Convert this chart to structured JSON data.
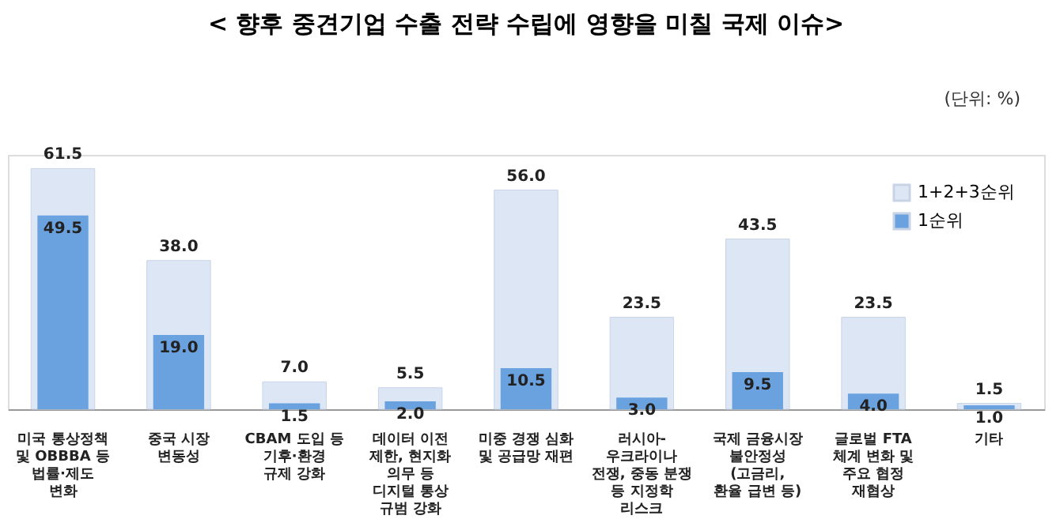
{
  "chart_data": {
    "type": "bar",
    "title": "< 향후 중견기업 수출 전략 수립에 영향을 미칠 국제 이슈>",
    "annotations": [
      "(단위: %)"
    ],
    "categories": [
      "미국 통상정책\n및 OBBBA 등\n법률·제도\n변화",
      "중국 시장\n변동성",
      "CBAM 도입 등\n기후·환경\n규제 강화",
      "데이터 이전\n제한, 현지화\n의무 등\n디지털 통상\n규범 강화",
      "미중 경쟁 심화\n및 공급망 재편",
      "러시아-\n우크라이나\n전쟁, 중동 분쟁\n등 지정학\n리스크",
      "국제 금융시장\n불안정성\n(고금리,\n환율 급변 등)",
      "글로벌 FTA\n체계 변화 및\n주요 협정\n재협상",
      "기타"
    ],
    "series": [
      {
        "name": "1+2+3순위",
        "color": "#dce6f5",
        "values": [
          61.5,
          38.0,
          7.0,
          5.5,
          56.0,
          23.5,
          43.5,
          23.5,
          1.5
        ],
        "value_labels": [
          "61.5",
          "38.0",
          "7.0",
          "5.5",
          "56.0",
          "23.5",
          "43.5",
          "23.5",
          "1.5"
        ]
      },
      {
        "name": "1순위",
        "color": "#6aa2e0",
        "values": [
          49.5,
          19.0,
          1.5,
          2.0,
          10.5,
          3.0,
          9.5,
          4.0,
          1.0
        ],
        "value_labels": [
          "49.5",
          "19.0",
          "1.5",
          "2.0",
          "10.5",
          "3.0",
          "9.5",
          "4.0",
          "1.0"
        ]
      }
    ],
    "legend": "top right",
    "grid": false
  }
}
